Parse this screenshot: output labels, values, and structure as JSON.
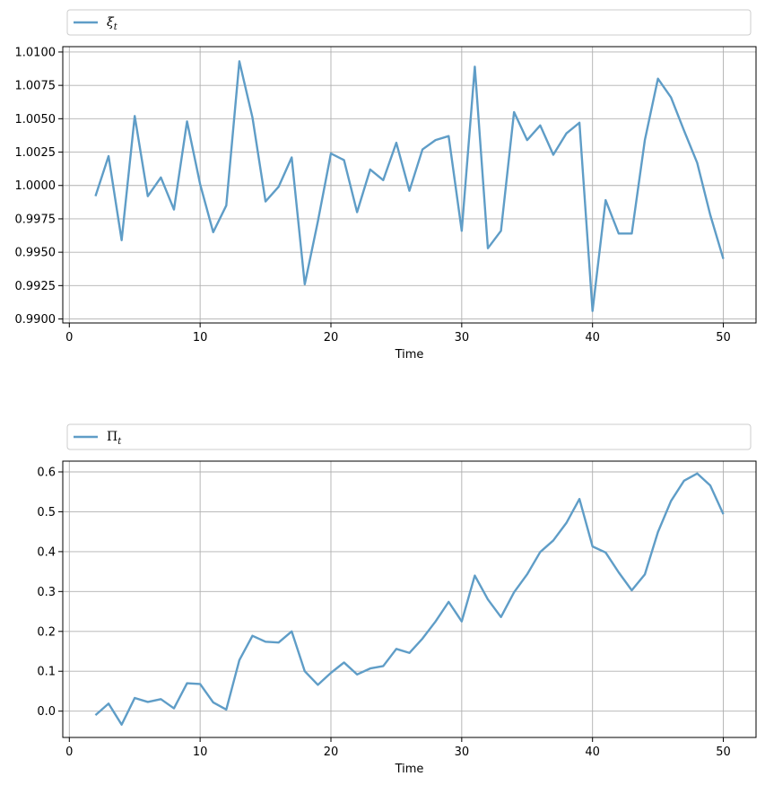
{
  "chart_data": [
    {
      "type": "line",
      "xlabel": "Time",
      "ylabel": "",
      "legend": "top (above plot)",
      "grid": true,
      "xlim": [
        -0.5,
        52.5
      ],
      "ylim": [
        0.9897,
        1.0104
      ],
      "xticks": [
        0,
        10,
        20,
        30,
        40,
        50
      ],
      "xtick_labels": [
        "0",
        "10",
        "20",
        "30",
        "40",
        "50"
      ],
      "yticks": [
        0.99,
        0.9925,
        0.995,
        0.9975,
        1.0,
        1.0025,
        1.005,
        1.0075,
        1.01
      ],
      "ytick_labels": [
        "0.9900",
        "0.9925",
        "0.9950",
        "0.9975",
        "1.0000",
        "1.0025",
        "1.0050",
        "1.0075",
        "1.0100"
      ],
      "series": [
        {
          "name": "ξ",
          "subscript": "t",
          "color": "#5f9dc7",
          "x": [
            2,
            3,
            4,
            5,
            6,
            7,
            8,
            9,
            10,
            11,
            12,
            13,
            14,
            15,
            16,
            17,
            18,
            19,
            20,
            21,
            22,
            23,
            24,
            25,
            26,
            27,
            28,
            29,
            30,
            31,
            32,
            33,
            34,
            35,
            36,
            37,
            38,
            39,
            40,
            41,
            42,
            43,
            44,
            45,
            46,
            47,
            48,
            49,
            50
          ],
          "y": [
            0.9992,
            1.0022,
            0.9959,
            1.0052,
            0.9992,
            1.0006,
            0.9982,
            1.0048,
            1.0001,
            0.9965,
            0.9985,
            1.0093,
            1.0051,
            0.9988,
            0.9999,
            1.0021,
            0.9926,
            0.9973,
            1.0024,
            1.0019,
            0.998,
            1.0012,
            1.0004,
            1.0032,
            0.9996,
            1.0027,
            1.0034,
            1.0037,
            0.9966,
            1.0089,
            0.9953,
            0.9966,
            1.0055,
            1.0034,
            1.0045,
            1.0023,
            1.0039,
            1.0047,
            0.9906,
            0.9989,
            0.9964,
            0.9964,
            1.0034,
            1.008,
            1.0066,
            1.0041,
            1.0017,
            0.9978,
            0.9945
          ]
        }
      ]
    },
    {
      "type": "line",
      "xlabel": "Time",
      "ylabel": "",
      "legend": "top (above plot)",
      "grid": true,
      "xlim": [
        -0.5,
        52.5
      ],
      "ylim": [
        -0.066,
        0.627
      ],
      "xticks": [
        0,
        10,
        20,
        30,
        40,
        50
      ],
      "xtick_labels": [
        "0",
        "10",
        "20",
        "30",
        "40",
        "50"
      ],
      "yticks": [
        0.0,
        0.1,
        0.2,
        0.3,
        0.4,
        0.5,
        0.6
      ],
      "ytick_labels": [
        "0.0",
        "0.1",
        "0.2",
        "0.3",
        "0.4",
        "0.5",
        "0.6"
      ],
      "series": [
        {
          "name": "Π",
          "subscript": "t",
          "color": "#5f9dc7",
          "x": [
            2,
            3,
            4,
            5,
            6,
            7,
            8,
            9,
            10,
            11,
            12,
            13,
            14,
            15,
            16,
            17,
            18,
            19,
            20,
            21,
            22,
            23,
            24,
            25,
            26,
            27,
            28,
            29,
            30,
            31,
            32,
            33,
            34,
            35,
            36,
            37,
            38,
            39,
            40,
            41,
            42,
            43,
            44,
            45,
            46,
            47,
            48,
            49,
            50
          ],
          "y": [
            -0.01,
            0.019,
            -0.034,
            0.033,
            0.023,
            0.03,
            0.007,
            0.07,
            0.068,
            0.022,
            0.004,
            0.128,
            0.189,
            0.174,
            0.172,
            0.2,
            0.1,
            0.066,
            0.096,
            0.122,
            0.092,
            0.107,
            0.113,
            0.156,
            0.146,
            0.182,
            0.225,
            0.274,
            0.225,
            0.34,
            0.28,
            0.236,
            0.298,
            0.343,
            0.399,
            0.428,
            0.472,
            0.532,
            0.413,
            0.398,
            0.348,
            0.303,
            0.343,
            0.449,
            0.527,
            0.578,
            0.596,
            0.566,
            0.494
          ]
        }
      ]
    }
  ]
}
